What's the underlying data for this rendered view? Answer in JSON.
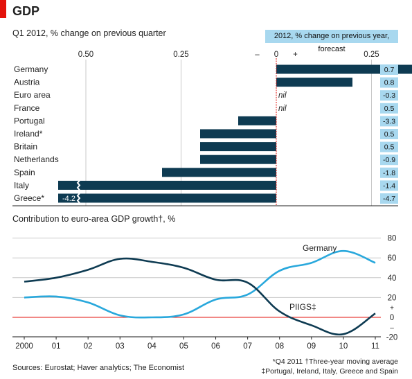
{
  "header": {
    "title": "GDP",
    "subtitle_top": "Q1 2012, % change on previous quarter",
    "forecast_label": "2012, % change on previous year, forecast",
    "subtitle_bottom": "Contribution to euro-area GDP growth†, %"
  },
  "footer": {
    "sources": "Sources: Eurostat; Haver analytics; The Economist",
    "note1": "*Q4 2011   †Three-year moving average",
    "note2": "‡Portugal, Ireland, Italy, Greece and Spain"
  },
  "chart_data": [
    {
      "type": "bar",
      "orientation": "horizontal",
      "title": "Q1 2012, % change on previous quarter",
      "categories": [
        "Germany",
        "Austria",
        "Euro area",
        "France",
        "Portugal",
        "Ireland*",
        "Britain",
        "Netherlands",
        "Spain",
        "Italy",
        "Greece*"
      ],
      "values": [
        0.5,
        0.2,
        0,
        0,
        -0.1,
        -0.2,
        -0.2,
        -0.2,
        -0.3,
        -0.8,
        -4.2
      ],
      "value_labels": [
        "",
        "",
        "nil",
        "nil",
        "",
        "",
        "",
        "",
        "",
        "",
        "-4.2"
      ],
      "xlim": [
        -1.15,
        0.55
      ],
      "ticks": [
        -1.0,
        -0.75,
        -0.5,
        -0.25,
        0,
        0.25,
        0.5
      ],
      "tick_labels": [
        "1.00",
        "0.75",
        "0.50",
        "0.25",
        "0",
        "0.25",
        "0.50"
      ],
      "sign_labels": [
        "–",
        "+"
      ],
      "bar_color": "#0e3b52",
      "zero_line_color": "#e3120b",
      "forecast": {
        "label": "2012, % change on previous year, forecast",
        "values": [
          "0.7",
          "0.8",
          "-0.3",
          "0.5",
          "-3.3",
          "0.5",
          "0.5",
          "-0.9",
          "-1.8",
          "-1.4",
          "-4.7"
        ],
        "color": "#a8d8ef"
      }
    },
    {
      "type": "line",
      "title": "Contribution to euro-area GDP growth†, %",
      "x": [
        "2000",
        "01",
        "02",
        "03",
        "04",
        "05",
        "06",
        "07",
        "08",
        "09",
        "10",
        "11"
      ],
      "series": [
        {
          "name": "Germany",
          "values": [
            20,
            21,
            15,
            2,
            0,
            3,
            18,
            23,
            47,
            55,
            67,
            55
          ],
          "color": "#29a8dc"
        },
        {
          "name": "PIIGS‡",
          "values": [
            36,
            40,
            48,
            59,
            56,
            50,
            38,
            35,
            6,
            -8,
            -17,
            4
          ],
          "color": "#0e3b52"
        }
      ],
      "ylim": [
        -20,
        80
      ],
      "yticks": [
        -20,
        0,
        20,
        40,
        60,
        80
      ],
      "sign_labels": [
        "+",
        "–"
      ],
      "zero_line_color": "#e3120b",
      "grid": "horizontal"
    }
  ]
}
